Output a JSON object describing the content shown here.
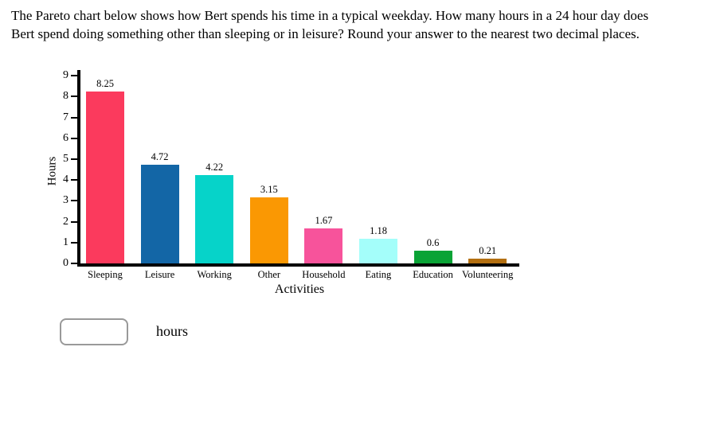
{
  "question": {
    "line1": "The Pareto chart below shows how Bert spends his time in a typical weekday. How many hours in a 24 hour day does",
    "line2": "Bert spend doing something other than sleeping or in leisure? Round your answer to the nearest two decimal places."
  },
  "chart_data": {
    "type": "bar",
    "title": "",
    "xlabel": "Activities",
    "ylabel": "Hours",
    "categories": [
      "Sleeping",
      "Leisure",
      "Working",
      "Other",
      "Household",
      "Eating",
      "Education",
      "Volunteering"
    ],
    "values": [
      8.25,
      4.72,
      4.22,
      3.15,
      1.67,
      1.18,
      0.6,
      0.21
    ],
    "value_labels": [
      "8.25",
      "4.72",
      "4.22",
      "3.15",
      "1.67",
      "1.18",
      "0.6",
      "0.21"
    ],
    "colors": [
      "#FB3A5D",
      "#1366A6",
      "#06D3C9",
      "#FA9803",
      "#F7539B",
      "#A4FEFA",
      "#0AA336",
      "#B36F10"
    ],
    "ylim": [
      0,
      9
    ],
    "yticks": [
      0,
      1,
      2,
      3,
      4,
      5,
      6,
      7,
      8,
      9
    ],
    "grid": false,
    "legend": null,
    "axis_color": "#000000"
  },
  "answer": {
    "input_value": "",
    "unit_label": "hours"
  }
}
